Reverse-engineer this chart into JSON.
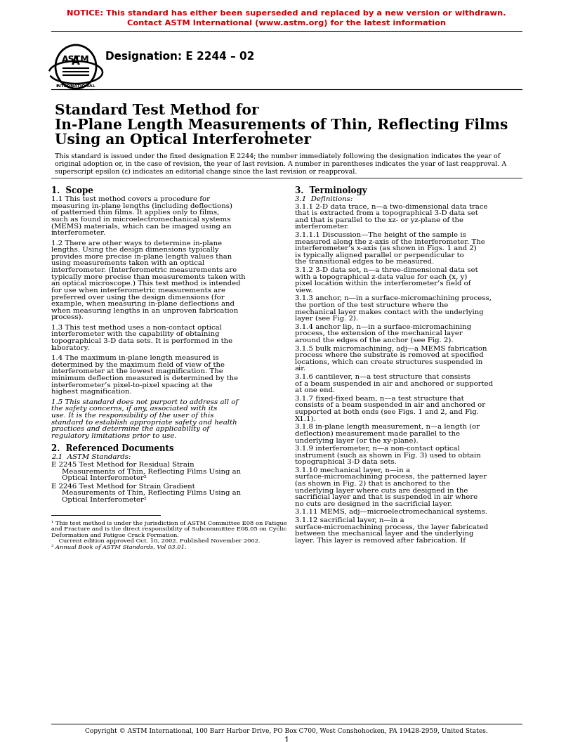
{
  "notice_line1": "NOTICE: This standard has either been superseded and replaced by a new version or withdrawn.",
  "notice_line2": "Contact ASTM International (www.astm.org) for the latest information",
  "notice_color": "#CC0000",
  "designation": "Designation: E 2244 – 02",
  "title_line1": "Standard Test Method for",
  "title_line2": "In-Plane Length Measurements of Thin, Reflecting Films",
  "title_line3": "Using an Optical Interferometer",
  "title_superscript": "1",
  "preamble1": "This standard is issued under the fixed designation E 2244; the number immediately following the designation indicates the year of",
  "preamble2": "original adoption or, in the case of revision, the year of last revision. A number in parentheses indicates the year of last reapproval. A",
  "preamble3": "superscript epsilon (ε) indicates an editorial change since the last revision or reapproval.",
  "sec1_head": "1.  Scope",
  "sec2_head": "2.  Referenced Documents",
  "sec3_head": "3.  Terminology",
  "s1p1": "1.1  This test method covers a procedure for measuring in-plane lengths (including deflections) of patterned thin films. It applies only to films, such as found in microelectromechanical systems (MEMS) materials, which can be imaged using an interferometer.",
  "s1p2": "1.2  There are other ways to determine in-plane lengths. Using the design dimensions typically provides more precise in-plane length values than using measurements taken with an optical interferometer. (Interferometric measurements are typically more precise than measurements taken with an optical microscope.) This test method is intended for use when interferometric measurements are preferred over using the design dimensions (for example, when measuring in-plane deflections and when measuring lengths in an unproven fabrication process).",
  "s1p3": "1.3  This test method uses a non-contact optical interferometer with the capability of obtaining topographical 3-D data sets. It is performed in the laboratory.",
  "s1p4": "1.4  The maximum in-plane length measured is determined by the maximum field of view of the interferometer at the lowest magnification. The minimum deflection measured is determined by the interferometer’s pixel-to-pixel spacing at the highest magnification.",
  "s1p5": "1.5  This standard does not purport to address all of the safety concerns, if any, associated with its use. It is the responsibility of the user of this standard to establish appropriate safety and health practices and determine the applicability of regulatory limitations prior to use.",
  "s2p1": "2.1  ASTM Standards:",
  "s2p2a": "E 2245",
  "s2p2b": "Test Method for Residual Strain Measurements of Thin, Reflecting Films Using an Optical Interferometer",
  "s2p2sup": "2",
  "s2p3a": "E 2246",
  "s2p3b": "Test Method for Strain Gradient Measurements of Thin, Reflecting Films Using an Optical Interferometer",
  "s2p3sup": "2",
  "s3p1": "3.1  Definitions:",
  "s3p2": "3.1.1  2-D data trace, n—a two-dimensional data trace that is extracted from a topographical 3-D data set and that is parallel to the xz- or yz-plane of the interferometer.",
  "s3p3": "3.1.1.1  Discussion—The height of the sample is measured along the z-axis of the interferometer. The interferometer’s x-axis (as shown in Figs. 1 and 2) is typically aligned parallel or perpendicular to the transitional edges to be measured.",
  "s3p4": "3.1.2  3-D data set, n—a three-dimensional data set with a topographical z-data value for each (x, y) pixel location within the interferometer’s field of view.",
  "s3p5": "3.1.3  anchor, n—in a surface-micromachining process, the portion of the test structure where the mechanical layer makes contact with the underlying layer (see Fig. 2).",
  "s3p6": "3.1.4  anchor lip, n—in a surface-micromachining process, the extension of the mechanical layer around the edges of the anchor (see Fig. 2).",
  "s3p7": "3.1.5  bulk micromachining, adj—a MEMS fabrication process where the substrate is removed at specified locations, which can create structures suspended in air.",
  "s3p8": "3.1.6  cantilever, n—a test structure that consists of a beam suspended in air and anchored or supported at one end.",
  "s3p9": "3.1.7  fixed-fixed beam, n—a test structure that consists of a beam suspended in air and anchored or supported at both ends (see Figs. 1 and 2, and Fig. X1.1).",
  "s3p10": "3.1.8  in-plane length measurement, n—a length (or deflection) measurement made parallel to the underlying layer (or the xy-plane).",
  "s3p11": "3.1.9  interferometer, n—a non-contact optical instrument (such as shown in Fig. 3) used to obtain topographical 3-D data sets.",
  "s3p12": "3.1.10  mechanical layer, n—in a surface-micromachining process, the patterned layer (as shown in Fig. 2) that is anchored to the underlying layer where cuts are designed in the sacrificial layer and that is suspended in air where no cuts are designed in the sacrificial layer.",
  "s3p13": "3.1.11  MEMS, adj—microelectromechanical systems.",
  "s3p14": "3.1.12  sacrificial layer, n—in a surface-micromachining process, the layer fabricated between the mechanical layer and the underlying layer. This layer is removed after fabrication. If",
  "fn1a": "¹ This test method is under the jurisdiction of ASTM Committee E08 on Fatigue",
  "fn1b": "and Fracture and is the direct responsibility of Subcommittee E08.05 on Cyclic",
  "fn1c": "Deformation and Fatigue Crack Formation.",
  "fn2": "    Current edition approved Oct. 10, 2002. Published November 2002.",
  "fn3": "² Annual Book of ASTM Standards, Vol 03.01.",
  "footer": "Copyright © ASTM International, 100 Barr Harbor Drive, PO Box C700, West Conshohocken, PA 19428-2959, United States.",
  "page_num": "1",
  "bg_color": "#FFFFFF"
}
